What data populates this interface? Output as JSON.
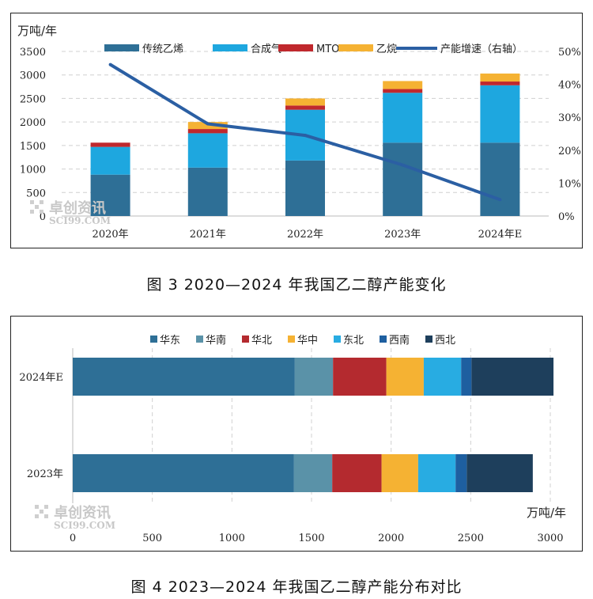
{
  "chart_data": [
    {
      "type": "bar",
      "stacked": true,
      "categories": [
        "2020年",
        "2021年",
        "2022年",
        "2023年",
        "2024年E"
      ],
      "series": [
        {
          "name": "传统乙烯",
          "values": [
            880,
            1030,
            1180,
            1560,
            1560
          ],
          "color": "#2e6f96"
        },
        {
          "name": "合成气",
          "values": [
            590,
            730,
            1080,
            1060,
            1220
          ],
          "color": "#1ea7df"
        },
        {
          "name": "MTO",
          "values": [
            90,
            90,
            90,
            80,
            80
          ],
          "color": "#c0282d"
        },
        {
          "name": "乙烷",
          "values": [
            0,
            150,
            150,
            170,
            170
          ],
          "color": "#f5b233"
        }
      ],
      "line_series": {
        "name": "产能增速（右轴）",
        "values": [
          0.46,
          0.28,
          0.245,
          0.155,
          0.05
        ],
        "color": "#2b5fa3"
      },
      "ylim": [
        0,
        3500
      ],
      "y_ticks": [
        "0",
        "500",
        "1000",
        "1500",
        "2000",
        "2500",
        "3000",
        "3500"
      ],
      "y2lim": [
        0,
        0.5
      ],
      "y2_ticks": [
        "0%",
        "10%",
        "20%",
        "30%",
        "40%",
        "50%"
      ],
      "unit_label": "万吨/年",
      "grid": true,
      "legend_position": "top"
    },
    {
      "type": "bar",
      "orientation": "horizontal",
      "stacked": true,
      "categories": [
        "2024年E",
        "2023年"
      ],
      "series": [
        {
          "name": "华东",
          "values": [
            1395,
            1390
          ],
          "color": "#2e6f96"
        },
        {
          "name": "华南",
          "values": [
            240,
            240
          ],
          "color": "#5a92a8"
        },
        {
          "name": "华北",
          "values": [
            335,
            310
          ],
          "color": "#b42a2f"
        },
        {
          "name": "华中",
          "values": [
            235,
            230
          ],
          "color": "#f5b233"
        },
        {
          "name": "东北",
          "values": [
            235,
            235
          ],
          "color": "#28ace2"
        },
        {
          "name": "西南",
          "values": [
            65,
            70
          ],
          "color": "#1e5fa0"
        },
        {
          "name": "西北",
          "values": [
            515,
            415
          ],
          "color": "#1e3f5c"
        }
      ],
      "xlim": [
        0,
        3000
      ],
      "x_ticks": [
        "0",
        "500",
        "1000",
        "1500",
        "2000",
        "2500",
        "3000"
      ],
      "unit_label": "万吨/年",
      "grid": true,
      "legend_position": "top"
    }
  ],
  "captions": {
    "chart1": "图 3 2020—2024 年我国乙二醇产能变化",
    "chart2": "图 4 2023—2024 年我国乙二醇产能分布对比"
  },
  "watermark": {
    "brand": "卓创资讯",
    "site": "SCI99.COM"
  }
}
